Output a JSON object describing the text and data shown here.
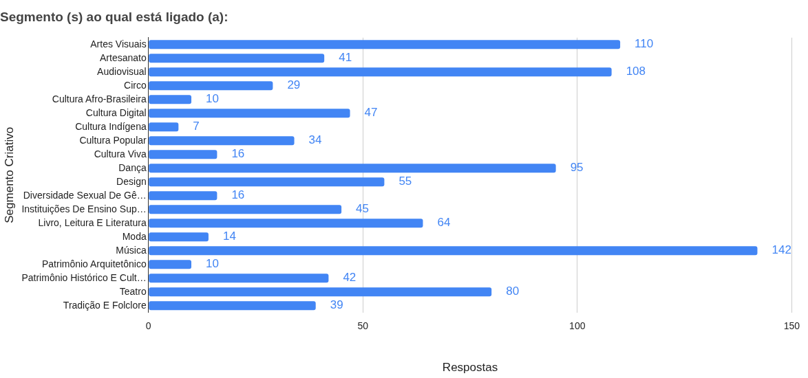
{
  "chart_data": {
    "type": "bar",
    "orientation": "horizontal",
    "title": "Segmento (s) ao qual está ligado (a):",
    "xlabel": "Respostas",
    "ylabel": "Segmento Criativo",
    "categories": [
      "Artes Visuais",
      "Artesanato",
      "Audiovisual",
      "Circo",
      "Cultura Afro-Brasileira",
      "Cultura Digital",
      "Cultura Indígena",
      "Cultura Popular",
      "Cultura Viva",
      "Dança",
      "Design",
      "Diversidade Sexual De Gê…",
      "Instituições De Ensino Sup…",
      "Livro, Leitura E Literatura",
      "Moda",
      "Música",
      "Patrimônio Arquitetônico",
      "Patrimônio Histórico E Cult…",
      "Teatro",
      "Tradição E Folclore"
    ],
    "values": [
      110,
      41,
      108,
      29,
      10,
      47,
      7,
      34,
      16,
      95,
      55,
      16,
      45,
      64,
      14,
      142,
      10,
      42,
      80,
      39
    ],
    "color": "#4285f4",
    "xlim": [
      0,
      150
    ],
    "xticks": [
      0,
      50,
      100,
      150
    ],
    "grid": "x",
    "data_labels": true,
    "legend": false
  }
}
